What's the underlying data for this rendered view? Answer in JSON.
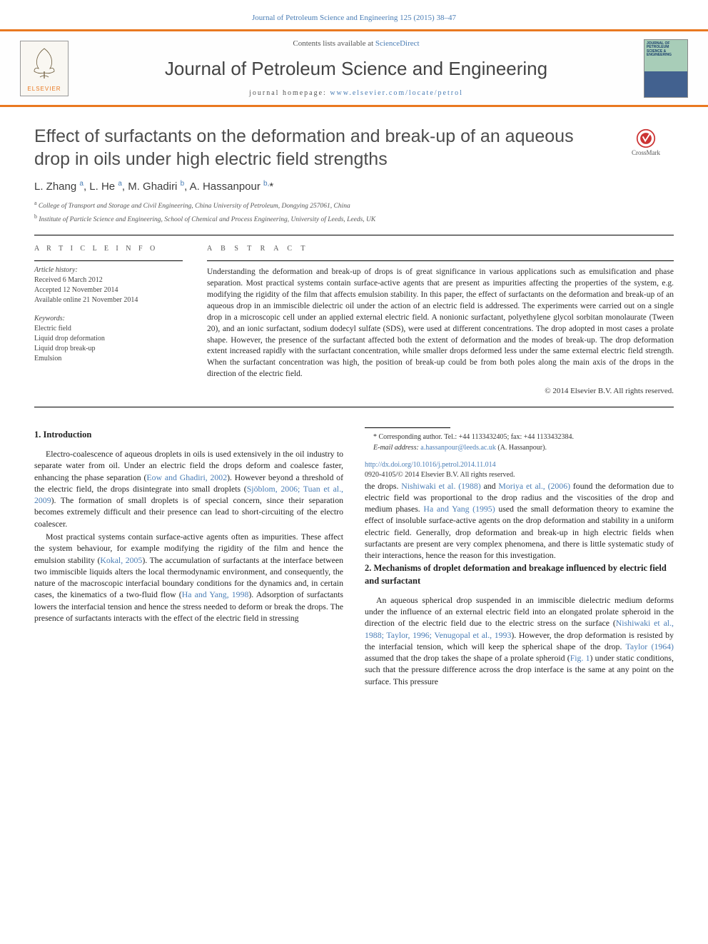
{
  "top_journal_ref": "Journal of Petroleum Science and Engineering 125 (2015) 38–47",
  "banner": {
    "contents_prefix": "Contents lists available at ",
    "contents_link": "ScienceDirect",
    "journal": "Journal of Petroleum Science and Engineering",
    "homepage_prefix": "journal homepage: ",
    "homepage_url": "www.elsevier.com/locate/petrol",
    "publisher_label": "ELSEVIER",
    "cover_text": "JOURNAL OF PETROLEUM SCIENCE & ENGINEERING"
  },
  "crossmark_label": "CrossMark",
  "title": "Effect of surfactants on the deformation and break-up of an aqueous drop in oils under high electric field strengths",
  "authors_html": "L. Zhang <sup>a</sup>, L. He <sup>a</sup>, M. Ghadiri <sup>b</sup>, A. Hassanpour <sup>b,</sup><span class='ast'>*</span>",
  "affiliations": [
    {
      "sup": "a",
      "text": "College of Transport and Storage and Civil Engineering, China University of Petroleum, Dongying 257061, China"
    },
    {
      "sup": "b",
      "text": "Institute of Particle Science and Engineering, School of Chemical and Process Engineering, University of Leeds, Leeds, UK"
    }
  ],
  "article_info_head": "A R T I C L E  I N F O",
  "abstract_head": "A B S T R A C T",
  "history": {
    "label": "Article history:",
    "received": "Received 6 March 2012",
    "accepted": "Accepted 12 November 2014",
    "online": "Available online 21 November 2014"
  },
  "keywords_label": "Keywords:",
  "keywords": [
    "Electric field",
    "Liquid drop deformation",
    "Liquid drop break-up",
    "Emulsion"
  ],
  "abstract": "Understanding the deformation and break-up of drops is of great significance in various applications such as emulsification and phase separation. Most practical systems contain surface-active agents that are present as impurities affecting the properties of the system, e.g. modifying the rigidity of the film that affects emulsion stability. In this paper, the effect of surfactants on the deformation and break-up of an aqueous drop in an immiscible dielectric oil under the action of an electric field is addressed. The experiments were carried out on a single drop in a microscopic cell under an applied external electric field. A nonionic surfactant, polyethylene glycol sorbitan monolaurate (Tween 20), and an ionic surfactant, sodium dodecyl sulfate (SDS), were used at different concentrations. The drop adopted in most cases a prolate shape. However, the presence of the surfactant affected both the extent of deformation and the modes of break-up. The drop deformation extent increased rapidly with the surfactant concentration, while smaller drops deformed less under the same external electric field strength. When the surfactant concentration was high, the position of break-up could be from both poles along the main axis of the drops in the direction of the electric field.",
  "copyright": "© 2014 Elsevier B.V. All rights reserved.",
  "sections": {
    "s1_head": "1.  Introduction",
    "s1_p1_a": "Electro-coalescence of aqueous droplets in oils is used extensively in the oil industry to separate water from oil. Under an electric field the drops deform and coalesce faster, enhancing the phase separation (",
    "s1_p1_l1": "Eow and Ghadiri, 2002",
    "s1_p1_b": "). However beyond a threshold of the electric field, the drops disintegrate into small droplets (",
    "s1_p1_l2": "Sjöblom, 2006; Tuan et al., 2009",
    "s1_p1_c": "). The formation of small droplets is of special concern, since their separation becomes extremely difficult and their presence can lead to short-circuiting of the electro coalescer.",
    "s1_p2_a": "Most practical systems contain surface-active agents often as impurities. These affect the system behaviour, for example modifying the rigidity of the film and hence the emulsion stability (",
    "s1_p2_l1": "Kokal, 2005",
    "s1_p2_b": "). The accumulation of surfactants at the interface between two immiscible liquids alters the local thermodynamic environment, and consequently, the nature of the macroscopic interfacial boundary conditions for the dynamics and, in certain cases, the kinematics of a two-fluid flow (",
    "s1_p2_l2": "Ha and Yang, 1998",
    "s1_p2_c": "). Adsorption of surfactants lowers the interfacial tension and hence the stress needed to deform or break the drops. The presence of surfactants interacts with the effect of the electric field in stressing",
    "s1_p2_d": "the drops. ",
    "s1_p2_l3": "Nishiwaki et al. (1988)",
    "s1_p2_e": " and ",
    "s1_p2_l4": "Moriya et al., (2006)",
    "s1_p2_f": " found the deformation due to electric field was proportional to the drop radius and the viscosities of the drop and medium phases. ",
    "s1_p2_l5": "Ha and Yang (1995)",
    "s1_p2_g": " used the small deformation theory to examine the effect of insoluble surface-active agents on the drop deformation and stability in a uniform electric field. Generally, drop deformation and break-up in high electric fields when surfactants are present are very complex phenomena, and there is little systematic study of their interactions, hence the reason for this investigation.",
    "s2_head": "2.  Mechanisms of droplet deformation and breakage influenced by electric field and surfactant",
    "s2_p1_a": "An aqueous spherical drop suspended in an immiscible dielectric medium deforms under the influence of an external electric field into an elongated prolate spheroid in the direction of the electric field due to the electric stress on the surface (",
    "s2_p1_l1": "Nishiwaki et al., 1988; Taylor, 1996; Venugopal et al., 1993",
    "s2_p1_b": "). However, the drop deformation is resisted by the interfacial tension, which will keep the spherical shape of the drop. ",
    "s2_p1_l2": "Taylor (1964)",
    "s2_p1_c": " assumed that the drop takes the shape of a prolate spheroid (",
    "s2_p1_l3": "Fig. 1",
    "s2_p1_d": ") under static conditions, such that the pressure difference across the drop interface is the same at any point on the surface. This pressure"
  },
  "footnotes": {
    "corr_label": "* Corresponding author. Tel.: ",
    "tel": "+44 1133432405",
    "fax_label": "; fax: ",
    "fax": "+44 1133432384.",
    "email_label": "E-mail address: ",
    "email": "a.hassanpour@leeds.ac.uk",
    "email_who": " (A. Hassanpour)."
  },
  "doi": {
    "url": "http://dx.doi.org/10.1016/j.petrol.2014.11.014",
    "issn_line": "0920-4105/© 2014 Elsevier B.V. All rights reserved."
  },
  "colors": {
    "accent": "#e97820",
    "link": "#4a7db5",
    "text": "#222222",
    "muted": "#555555"
  }
}
